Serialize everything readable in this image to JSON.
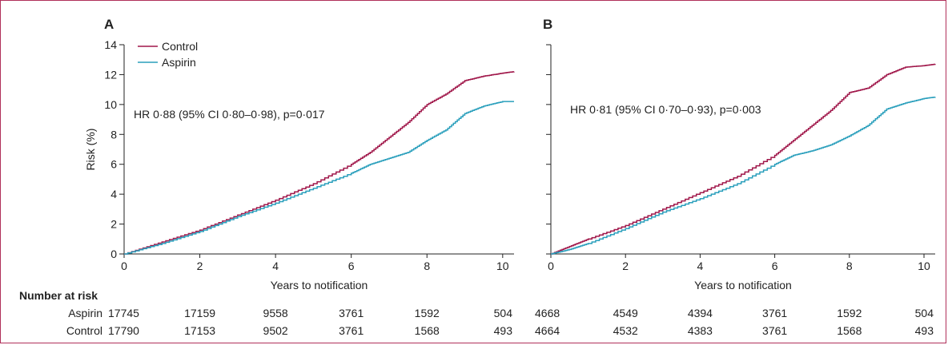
{
  "colors": {
    "control": "#a0174a",
    "aspirin": "#2a9fbc",
    "frame": "#b0305a",
    "axis": "#222222"
  },
  "shared": {
    "xlabel": "Years to notification",
    "ylabel": "Risk (%)",
    "number_at_risk_title": "Number at risk",
    "x_ticks": [
      "0",
      "2",
      "4",
      "6",
      "8",
      "10"
    ],
    "y_ticks": [
      "0",
      "2",
      "4",
      "6",
      "8",
      "10",
      "12",
      "14"
    ]
  },
  "chart_data": [
    {
      "type": "line",
      "panel": "A",
      "xlabel": "Years to notification",
      "ylabel": "Risk (%)",
      "xlim": [
        0,
        10.3
      ],
      "ylim": [
        0,
        14
      ],
      "legend_position": "top-left",
      "annotation": "HR 0·88 (95% CI 0·80–0·98), p=0·017",
      "series": [
        {
          "name": "Control",
          "color": "#a0174a",
          "x": [
            0,
            1,
            2,
            3,
            4,
            5,
            6,
            6.5,
            7,
            7.5,
            8,
            8.5,
            9,
            9.5,
            10,
            10.3
          ],
          "y": [
            0,
            0.8,
            1.6,
            2.6,
            3.6,
            4.7,
            6.0,
            6.8,
            7.8,
            8.8,
            10.0,
            10.7,
            11.6,
            11.9,
            12.1,
            12.2
          ]
        },
        {
          "name": "Aspirin",
          "color": "#2a9fbc",
          "x": [
            0,
            1,
            2,
            3,
            4,
            5,
            6,
            6.5,
            7,
            7.5,
            8,
            8.5,
            9,
            9.5,
            10,
            10.3
          ],
          "y": [
            0,
            0.7,
            1.5,
            2.5,
            3.4,
            4.4,
            5.4,
            6.0,
            6.4,
            6.8,
            7.6,
            8.3,
            9.4,
            9.9,
            10.2,
            10.2
          ]
        }
      ],
      "number_at_risk": {
        "x": [
          0,
          2,
          4,
          6,
          8,
          10
        ],
        "rows": [
          {
            "label": "Aspirin",
            "values": [
              "17745",
              "17159",
              "9558",
              "3761",
              "1592",
              "504"
            ]
          },
          {
            "label": "Control",
            "values": [
              "17790",
              "17153",
              "9502",
              "3761",
              "1568",
              "493"
            ]
          }
        ]
      }
    },
    {
      "type": "line",
      "panel": "B",
      "xlabel": "Years to notification",
      "ylabel": "",
      "xlim": [
        0,
        10.3
      ],
      "ylim": [
        0,
        14
      ],
      "annotation": "HR 0·81 (95% CI 0·70–0·93), p=0·003",
      "series": [
        {
          "name": "Control",
          "color": "#a0174a",
          "x": [
            0,
            0.5,
            1,
            2,
            3,
            4,
            5,
            6,
            6.5,
            7,
            7.5,
            8,
            8.5,
            9,
            9.5,
            10,
            10.3
          ],
          "y": [
            0,
            0.5,
            1.0,
            1.9,
            3.0,
            4.1,
            5.2,
            6.6,
            7.6,
            8.6,
            9.6,
            10.8,
            11.1,
            12.0,
            12.5,
            12.6,
            12.7
          ]
        },
        {
          "name": "Aspirin",
          "color": "#2a9fbc",
          "x": [
            0,
            0.5,
            1,
            2,
            3,
            4,
            5,
            6,
            6.5,
            7,
            7.5,
            8,
            8.5,
            9,
            9.5,
            10,
            10.3
          ],
          "y": [
            0,
            0.3,
            0.7,
            1.7,
            2.8,
            3.7,
            4.7,
            6.0,
            6.6,
            6.9,
            7.3,
            7.9,
            8.6,
            9.7,
            10.1,
            10.4,
            10.5
          ]
        }
      ],
      "number_at_risk": {
        "x": [
          0,
          2,
          4,
          6,
          8,
          10
        ],
        "rows": [
          {
            "label": "Aspirin",
            "values": [
              "4668",
              "4549",
              "4394",
              "3761",
              "1592",
              "504"
            ]
          },
          {
            "label": "Control",
            "values": [
              "4664",
              "4532",
              "4383",
              "3761",
              "1568",
              "493"
            ]
          }
        ]
      }
    }
  ]
}
